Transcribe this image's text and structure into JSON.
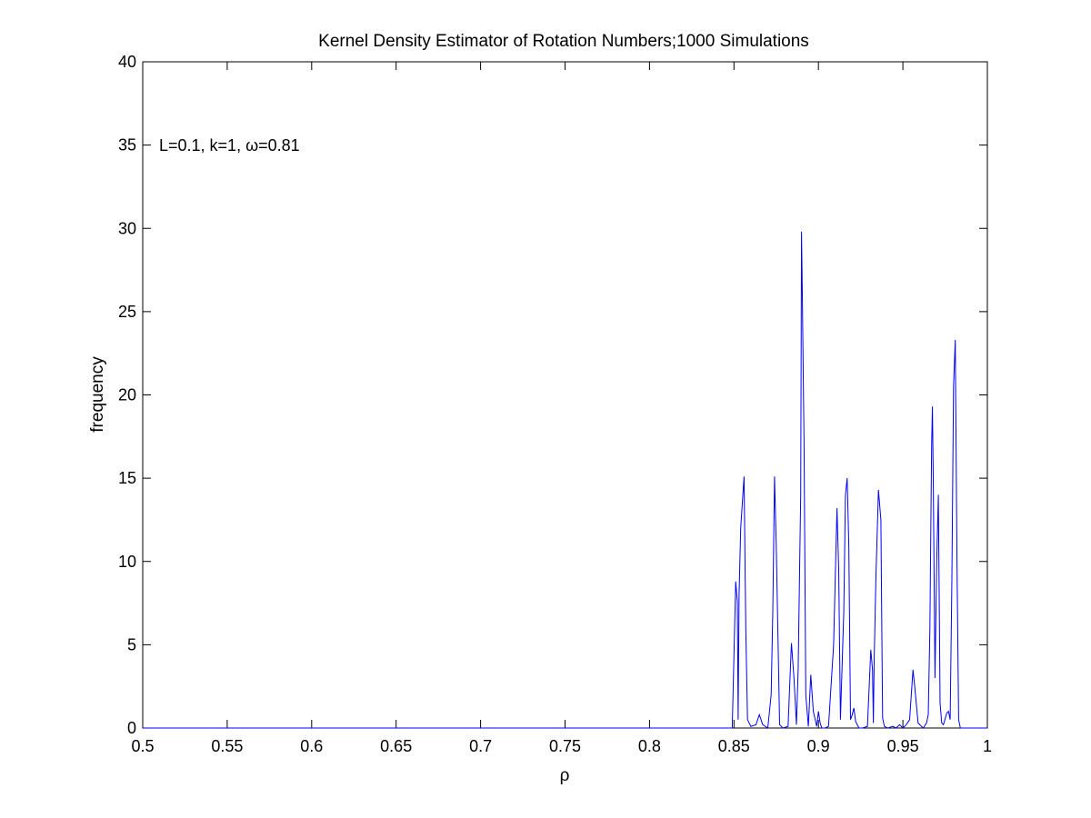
{
  "chart_data": {
    "type": "line",
    "title": "Kernel Density Estimator of Rotation Numbers;1000 Simulations",
    "xlabel": "ρ",
    "ylabel": "frequency",
    "annotation": "L=0.1, k=1, ω=0.81",
    "xlim": [
      0.5,
      1
    ],
    "ylim": [
      0,
      40
    ],
    "xticks": [
      "0.5",
      "0.55",
      "0.6",
      "0.65",
      "0.7",
      "0.75",
      "0.8",
      "0.85",
      "0.9",
      "0.95",
      "1"
    ],
    "yticks": [
      "0",
      "5",
      "10",
      "15",
      "20",
      "25",
      "30",
      "35",
      "40"
    ],
    "grid": false,
    "line_color": "#0000ff",
    "series": [
      {
        "x": [
          0.5,
          0.849,
          0.851,
          0.852,
          0.8525,
          0.853,
          0.854,
          0.856,
          0.857,
          0.858,
          0.86,
          0.863,
          0.865,
          0.867,
          0.87,
          0.872,
          0.873,
          0.874,
          0.875,
          0.877,
          0.879,
          0.882,
          0.884,
          0.8855,
          0.887,
          0.888,
          0.8895,
          0.89,
          0.8905,
          0.8915,
          0.8925,
          0.894,
          0.8955,
          0.897,
          0.899,
          0.9,
          0.901,
          0.902,
          0.904,
          0.906,
          0.909,
          0.911,
          0.912,
          0.913,
          0.915,
          0.916,
          0.917,
          0.918,
          0.919,
          0.92,
          0.921,
          0.922,
          0.924,
          0.926,
          0.929,
          0.931,
          0.932,
          0.9325,
          0.933,
          0.934,
          0.9355,
          0.937,
          0.9375,
          0.938,
          0.939,
          0.941,
          0.944,
          0.946,
          0.948,
          0.95,
          0.952,
          0.954,
          0.956,
          0.957,
          0.959,
          0.962,
          0.964,
          0.965,
          0.966,
          0.967,
          0.9675,
          0.968,
          0.969,
          0.97,
          0.971,
          0.972,
          0.973,
          0.974,
          0.976,
          0.977,
          0.978,
          0.979,
          0.98,
          0.981,
          0.982,
          0.983,
          0.984,
          0.986,
          0.99,
          1.0
        ],
        "y": [
          0,
          0,
          8.8,
          7.6,
          0.5,
          8.0,
          12.0,
          15.1,
          6.0,
          0.5,
          0.1,
          0.2,
          0.8,
          0.2,
          0,
          2.0,
          7.0,
          15.1,
          11.0,
          0.2,
          0,
          0.1,
          5.1,
          3.0,
          0.2,
          3.5,
          14.0,
          29.8,
          26.0,
          17.0,
          2.0,
          0.1,
          3.2,
          1.0,
          0.1,
          1.0,
          0.3,
          0,
          0,
          0.1,
          5.0,
          13.2,
          9.5,
          0.5,
          7.0,
          14.0,
          15.0,
          11.0,
          0.5,
          0.8,
          1.2,
          0.4,
          0,
          0,
          0.1,
          4.7,
          3.5,
          0.3,
          4.0,
          9.0,
          14.3,
          12.5,
          6.0,
          0.6,
          0.1,
          0,
          0.1,
          0,
          0.2,
          0,
          0.2,
          0.5,
          3.5,
          2.5,
          0.3,
          0,
          0.3,
          0.8,
          6.0,
          17.0,
          19.3,
          15.0,
          3.0,
          10.0,
          14.0,
          1.5,
          0.3,
          0.2,
          0.9,
          1.0,
          0.5,
          9.0,
          20.5,
          23.3,
          10.0,
          0.5,
          0,
          0,
          0,
          0
        ]
      }
    ]
  }
}
